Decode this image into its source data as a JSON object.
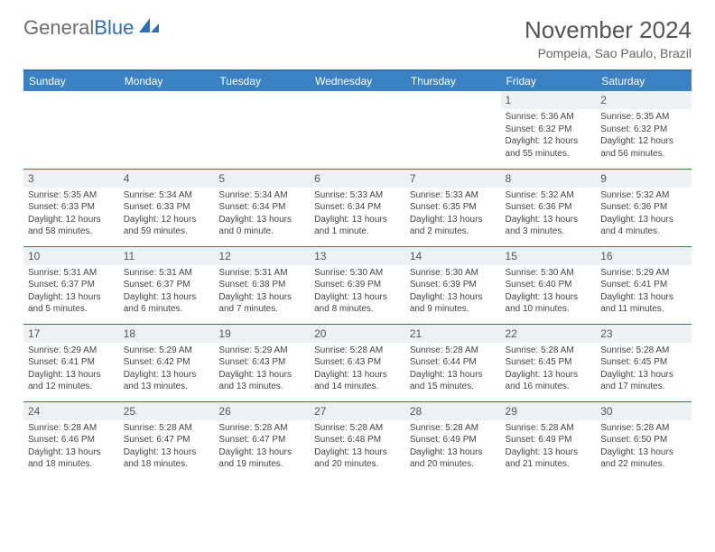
{
  "logo": {
    "part1": "General",
    "part2": "Blue"
  },
  "title": "November 2024",
  "location": "Pompeia, Sao Paulo, Brazil",
  "colors": {
    "header_bg": "#3b82c4",
    "header_text": "#ffffff",
    "border": "#2f6fb3",
    "daynum_bg": "#eef1f3",
    "text": "#444444",
    "logo_gray": "#6d6d6d",
    "logo_blue": "#2f6fb3"
  },
  "weekdays": [
    "Sunday",
    "Monday",
    "Tuesday",
    "Wednesday",
    "Thursday",
    "Friday",
    "Saturday"
  ],
  "weeks": [
    [
      null,
      null,
      null,
      null,
      null,
      {
        "n": "1",
        "sr": "5:36 AM",
        "ss": "6:32 PM",
        "dl": "12 hours and 55 minutes."
      },
      {
        "n": "2",
        "sr": "5:35 AM",
        "ss": "6:32 PM",
        "dl": "12 hours and 56 minutes."
      }
    ],
    [
      {
        "n": "3",
        "sr": "5:35 AM",
        "ss": "6:33 PM",
        "dl": "12 hours and 58 minutes."
      },
      {
        "n": "4",
        "sr": "5:34 AM",
        "ss": "6:33 PM",
        "dl": "12 hours and 59 minutes."
      },
      {
        "n": "5",
        "sr": "5:34 AM",
        "ss": "6:34 PM",
        "dl": "13 hours and 0 minute."
      },
      {
        "n": "6",
        "sr": "5:33 AM",
        "ss": "6:34 PM",
        "dl": "13 hours and 1 minute."
      },
      {
        "n": "7",
        "sr": "5:33 AM",
        "ss": "6:35 PM",
        "dl": "13 hours and 2 minutes."
      },
      {
        "n": "8",
        "sr": "5:32 AM",
        "ss": "6:36 PM",
        "dl": "13 hours and 3 minutes."
      },
      {
        "n": "9",
        "sr": "5:32 AM",
        "ss": "6:36 PM",
        "dl": "13 hours and 4 minutes."
      }
    ],
    [
      {
        "n": "10",
        "sr": "5:31 AM",
        "ss": "6:37 PM",
        "dl": "13 hours and 5 minutes."
      },
      {
        "n": "11",
        "sr": "5:31 AM",
        "ss": "6:37 PM",
        "dl": "13 hours and 6 minutes."
      },
      {
        "n": "12",
        "sr": "5:31 AM",
        "ss": "6:38 PM",
        "dl": "13 hours and 7 minutes."
      },
      {
        "n": "13",
        "sr": "5:30 AM",
        "ss": "6:39 PM",
        "dl": "13 hours and 8 minutes."
      },
      {
        "n": "14",
        "sr": "5:30 AM",
        "ss": "6:39 PM",
        "dl": "13 hours and 9 minutes."
      },
      {
        "n": "15",
        "sr": "5:30 AM",
        "ss": "6:40 PM",
        "dl": "13 hours and 10 minutes."
      },
      {
        "n": "16",
        "sr": "5:29 AM",
        "ss": "6:41 PM",
        "dl": "13 hours and 11 minutes."
      }
    ],
    [
      {
        "n": "17",
        "sr": "5:29 AM",
        "ss": "6:41 PM",
        "dl": "13 hours and 12 minutes."
      },
      {
        "n": "18",
        "sr": "5:29 AM",
        "ss": "6:42 PM",
        "dl": "13 hours and 13 minutes."
      },
      {
        "n": "19",
        "sr": "5:29 AM",
        "ss": "6:43 PM",
        "dl": "13 hours and 13 minutes."
      },
      {
        "n": "20",
        "sr": "5:28 AM",
        "ss": "6:43 PM",
        "dl": "13 hours and 14 minutes."
      },
      {
        "n": "21",
        "sr": "5:28 AM",
        "ss": "6:44 PM",
        "dl": "13 hours and 15 minutes."
      },
      {
        "n": "22",
        "sr": "5:28 AM",
        "ss": "6:45 PM",
        "dl": "13 hours and 16 minutes."
      },
      {
        "n": "23",
        "sr": "5:28 AM",
        "ss": "6:45 PM",
        "dl": "13 hours and 17 minutes."
      }
    ],
    [
      {
        "n": "24",
        "sr": "5:28 AM",
        "ss": "6:46 PM",
        "dl": "13 hours and 18 minutes."
      },
      {
        "n": "25",
        "sr": "5:28 AM",
        "ss": "6:47 PM",
        "dl": "13 hours and 18 minutes."
      },
      {
        "n": "26",
        "sr": "5:28 AM",
        "ss": "6:47 PM",
        "dl": "13 hours and 19 minutes."
      },
      {
        "n": "27",
        "sr": "5:28 AM",
        "ss": "6:48 PM",
        "dl": "13 hours and 20 minutes."
      },
      {
        "n": "28",
        "sr": "5:28 AM",
        "ss": "6:49 PM",
        "dl": "13 hours and 20 minutes."
      },
      {
        "n": "29",
        "sr": "5:28 AM",
        "ss": "6:49 PM",
        "dl": "13 hours and 21 minutes."
      },
      {
        "n": "30",
        "sr": "5:28 AM",
        "ss": "6:50 PM",
        "dl": "13 hours and 22 minutes."
      }
    ]
  ],
  "labels": {
    "sunrise": "Sunrise: ",
    "sunset": "Sunset: ",
    "daylight": "Daylight: "
  }
}
